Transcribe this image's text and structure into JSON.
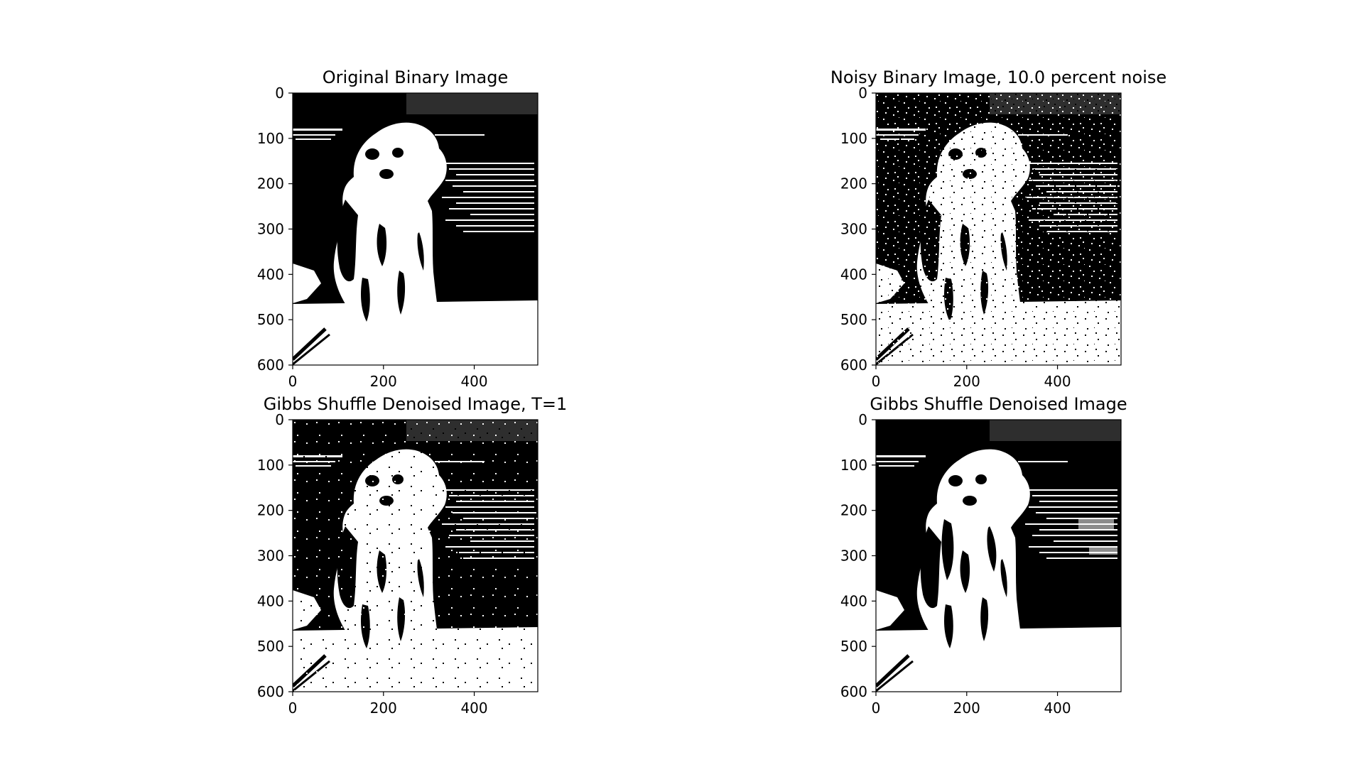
{
  "figure": {
    "background": "#ffffff",
    "foreground": "#000000"
  },
  "chart_data": [
    {
      "type": "heatmap",
      "id": "original",
      "title": "Original Binary Image",
      "colormap": "binary (black / white)",
      "noise": "none",
      "xlim": [
        0,
        540
      ],
      "ylim": [
        600,
        0
      ],
      "xticks": [
        0,
        200,
        400
      ],
      "xtick_labels": [
        "0",
        "200",
        "400"
      ],
      "yticks": [
        0,
        100,
        200,
        300,
        400,
        500,
        600
      ],
      "ytick_labels": [
        "0",
        "100",
        "200",
        "300",
        "400",
        "500",
        "600"
      ],
      "grid": false,
      "legend": "none"
    },
    {
      "type": "heatmap",
      "id": "noisy",
      "title": "Noisy Binary Image, 10.0 percent noise",
      "colormap": "binary (black / white)",
      "noise": "heavy",
      "xlim": [
        0,
        540
      ],
      "ylim": [
        600,
        0
      ],
      "xticks": [
        0,
        200,
        400
      ],
      "xtick_labels": [
        "0",
        "200",
        "400"
      ],
      "yticks": [
        0,
        100,
        200,
        300,
        400,
        500,
        600
      ],
      "ytick_labels": [
        "0",
        "100",
        "200",
        "300",
        "400",
        "500",
        "600"
      ],
      "grid": false,
      "legend": "none"
    },
    {
      "type": "heatmap",
      "id": "gibbs-t1",
      "title": "Gibbs Shuffle Denoised Image, T=1",
      "colormap": "binary (black / white)",
      "noise": "medium",
      "xlim": [
        0,
        540
      ],
      "ylim": [
        600,
        0
      ],
      "xticks": [
        0,
        200,
        400
      ],
      "xtick_labels": [
        "0",
        "200",
        "400"
      ],
      "yticks": [
        0,
        100,
        200,
        300,
        400,
        500,
        600
      ],
      "ytick_labels": [
        "0",
        "100",
        "200",
        "300",
        "400",
        "500",
        "600"
      ],
      "grid": false,
      "legend": "none"
    },
    {
      "type": "heatmap",
      "id": "gibbs",
      "title": "Gibbs Shuffle Denoised Image",
      "colormap": "binary (black / white)",
      "noise": "smoothed",
      "xlim": [
        0,
        540
      ],
      "ylim": [
        600,
        0
      ],
      "xticks": [
        0,
        200,
        400
      ],
      "xtick_labels": [
        "0",
        "200",
        "400"
      ],
      "yticks": [
        0,
        100,
        200,
        300,
        400,
        500,
        600
      ],
      "ytick_labels": [
        "0",
        "100",
        "200",
        "300",
        "400",
        "500",
        "600"
      ],
      "grid": false,
      "legend": "none"
    }
  ]
}
